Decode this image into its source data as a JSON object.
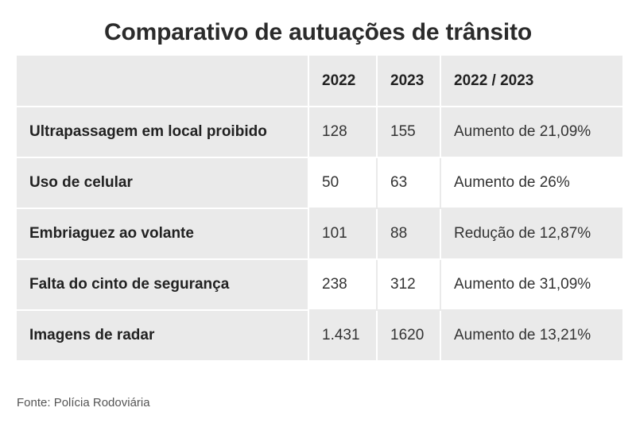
{
  "title": "Comparativo de autuações de trânsito",
  "table": {
    "headers": [
      "",
      "2022",
      "2023",
      "2022 / 2023"
    ],
    "rows": [
      {
        "label": "Ultrapassagem em local proibido",
        "y2022": "128",
        "y2023": "155",
        "change": "Aumento de 21,09%"
      },
      {
        "label": "Uso de celular",
        "y2022": "50",
        "y2023": "63",
        "change": "Aumento de 26%"
      },
      {
        "label": "Embriaguez ao volante",
        "y2022": "101",
        "y2023": "88",
        "change": "Redução de 12,87%"
      },
      {
        "label": "Falta do cinto de segurança",
        "y2022": "238",
        "y2023": "312",
        "change": "Aumento de 31,09%"
      },
      {
        "label": "Imagens de radar",
        "y2022": "1.431",
        "y2023": "1620",
        "change": "Aumento de 13,21%"
      }
    ]
  },
  "source": "Fonte: Polícia Rodoviária"
}
